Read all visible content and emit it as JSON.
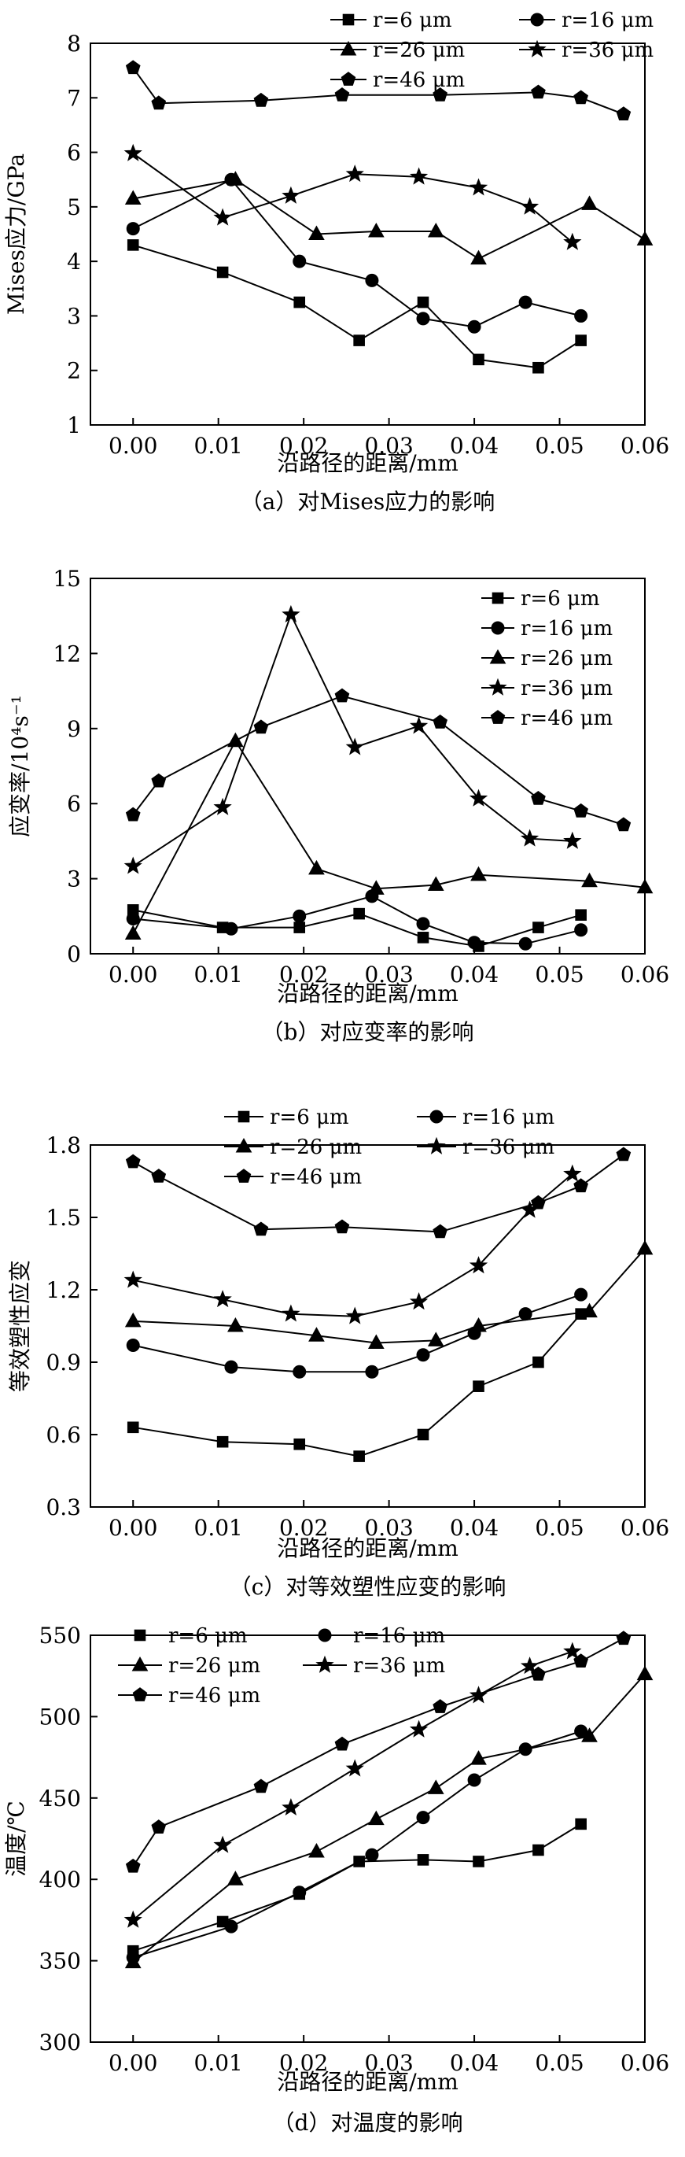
{
  "chart_data": [
    {
      "id": "a",
      "type": "line",
      "caption": "（a）对Mises应力的影响",
      "xlabel": "沿路径的距离/mm",
      "ylabel": "Mises应力/GPa",
      "xlim": [
        -0.005,
        0.06
      ],
      "ylim": [
        1,
        8
      ],
      "xticks": [
        0.0,
        0.01,
        0.02,
        0.03,
        0.04,
        0.05,
        0.06
      ],
      "yticks": [
        1,
        2,
        3,
        4,
        5,
        6,
        7,
        8
      ],
      "xtick_labels": [
        "0.00",
        "0.01",
        "0.02",
        "0.03",
        "0.04",
        "0.05",
        "0.06"
      ],
      "ytick_labels": [
        "1",
        "2",
        "3",
        "4",
        "5",
        "6",
        "7",
        "8"
      ],
      "series": [
        {
          "name": "r=6 μm",
          "marker": "square",
          "x": [
            0.0,
            0.0105,
            0.0195,
            0.0265,
            0.034,
            0.0405,
            0.0475,
            0.0525
          ],
          "y": [
            4.3,
            3.8,
            3.25,
            2.55,
            3.25,
            2.2,
            2.05,
            2.55
          ]
        },
        {
          "name": "r=16 μm",
          "marker": "circle",
          "x": [
            0.0,
            0.0115,
            0.0195,
            0.028,
            0.034,
            0.04,
            0.046,
            0.0525
          ],
          "y": [
            4.6,
            5.5,
            4.0,
            3.65,
            2.95,
            2.8,
            3.25,
            3.0
          ]
        },
        {
          "name": "r=26 μm",
          "marker": "triangle",
          "x": [
            0.0,
            0.012,
            0.0215,
            0.0285,
            0.0355,
            0.0405,
            0.0535,
            0.06
          ],
          "y": [
            5.15,
            5.5,
            4.5,
            4.55,
            4.55,
            4.05,
            5.05,
            4.4
          ]
        },
        {
          "name": "r=36 μm",
          "marker": "star",
          "x": [
            0.0,
            0.0105,
            0.0185,
            0.026,
            0.0335,
            0.0405,
            0.0465,
            0.0515
          ],
          "y": [
            5.98,
            4.8,
            5.2,
            5.6,
            5.55,
            5.35,
            5.0,
            4.35
          ]
        },
        {
          "name": "r=46 μm",
          "marker": "pentagon",
          "x": [
            0.0,
            0.003,
            0.015,
            0.0245,
            0.036,
            0.0475,
            0.0525,
            0.0575
          ],
          "y": [
            7.55,
            6.9,
            6.95,
            7.05,
            7.05,
            7.1,
            7.0,
            6.7
          ]
        }
      ]
    },
    {
      "id": "b",
      "type": "line",
      "caption": "（b）对应变率的影响",
      "xlabel": "沿路径的距离/mm",
      "ylabel": "应变率/10⁴s⁻¹",
      "xlim": [
        -0.005,
        0.06
      ],
      "ylim": [
        0,
        15
      ],
      "xticks": [
        0.0,
        0.01,
        0.02,
        0.03,
        0.04,
        0.05,
        0.06
      ],
      "yticks": [
        0,
        3,
        6,
        9,
        12,
        15
      ],
      "xtick_labels": [
        "0.00",
        "0.01",
        "0.02",
        "0.03",
        "0.04",
        "0.05",
        "0.06"
      ],
      "ytick_labels": [
        "0",
        "3",
        "6",
        "9",
        "12",
        "15"
      ],
      "series": [
        {
          "name": "r=6 μm",
          "marker": "square",
          "x": [
            0.0,
            0.0105,
            0.0195,
            0.0265,
            0.034,
            0.0405,
            0.0475,
            0.0525
          ],
          "y": [
            1.75,
            1.05,
            1.05,
            1.6,
            0.65,
            0.3,
            1.05,
            1.55
          ]
        },
        {
          "name": "r=16 μm",
          "marker": "circle",
          "x": [
            0.0,
            0.0115,
            0.0195,
            0.028,
            0.034,
            0.04,
            0.046,
            0.0525
          ],
          "y": [
            1.4,
            1.0,
            1.5,
            2.3,
            1.2,
            0.45,
            0.4,
            0.95
          ]
        },
        {
          "name": "r=26 μm",
          "marker": "triangle",
          "x": [
            0.0,
            0.012,
            0.0215,
            0.0285,
            0.0355,
            0.0405,
            0.0535,
            0.06
          ],
          "y": [
            0.8,
            8.5,
            3.4,
            2.6,
            2.75,
            3.15,
            2.9,
            2.65
          ]
        },
        {
          "name": "r=36 μm",
          "marker": "star",
          "x": [
            0.0,
            0.0105,
            0.0185,
            0.026,
            0.0335,
            0.0405,
            0.0465,
            0.0515
          ],
          "y": [
            3.5,
            5.85,
            13.55,
            8.25,
            9.1,
            6.2,
            4.6,
            4.5
          ]
        },
        {
          "name": "r=46 μm",
          "marker": "pentagon",
          "x": [
            0.0,
            0.003,
            0.015,
            0.0245,
            0.036,
            0.0475,
            0.0525,
            0.0575
          ],
          "y": [
            5.55,
            6.9,
            9.05,
            10.3,
            9.25,
            6.2,
            5.7,
            5.15
          ]
        }
      ]
    },
    {
      "id": "c",
      "type": "line",
      "caption": "（c）对等效塑性应变的影响",
      "xlabel": "沿路径的距离/mm",
      "ylabel": "等效塑性应变",
      "xlim": [
        -0.005,
        0.06
      ],
      "ylim": [
        0.3,
        1.8
      ],
      "xticks": [
        0.0,
        0.01,
        0.02,
        0.03,
        0.04,
        0.05,
        0.06
      ],
      "yticks": [
        0.3,
        0.6,
        0.9,
        1.2,
        1.5,
        1.8
      ],
      "xtick_labels": [
        "0.00",
        "0.01",
        "0.02",
        "0.03",
        "0.04",
        "0.05",
        "0.06"
      ],
      "ytick_labels": [
        "0.3",
        "0.6",
        "0.9",
        "1.2",
        "1.5",
        "1.8"
      ],
      "series": [
        {
          "name": "r=6 μm",
          "marker": "square",
          "x": [
            0.0,
            0.0105,
            0.0195,
            0.0265,
            0.034,
            0.0405,
            0.0475,
            0.0525
          ],
          "y": [
            0.63,
            0.57,
            0.56,
            0.51,
            0.6,
            0.8,
            0.9,
            1.1
          ]
        },
        {
          "name": "r=16 μm",
          "marker": "circle",
          "x": [
            0.0,
            0.0115,
            0.0195,
            0.028,
            0.034,
            0.04,
            0.046,
            0.0525
          ],
          "y": [
            0.97,
            0.88,
            0.86,
            0.86,
            0.93,
            1.02,
            1.1,
            1.18
          ]
        },
        {
          "name": "r=26 μm",
          "marker": "triangle",
          "x": [
            0.0,
            0.012,
            0.0215,
            0.0285,
            0.0355,
            0.0405,
            0.0535,
            0.06
          ],
          "y": [
            1.07,
            1.05,
            1.01,
            0.98,
            0.99,
            1.05,
            1.11,
            1.37
          ]
        },
        {
          "name": "r=36 μm",
          "marker": "star",
          "x": [
            0.0,
            0.0105,
            0.0185,
            0.026,
            0.0335,
            0.0405,
            0.0465,
            0.0515
          ],
          "y": [
            1.24,
            1.16,
            1.1,
            1.09,
            1.15,
            1.3,
            1.53,
            1.68
          ]
        },
        {
          "name": "r=46 μm",
          "marker": "pentagon",
          "x": [
            0.0,
            0.003,
            0.015,
            0.0245,
            0.036,
            0.0475,
            0.0525,
            0.0575
          ],
          "y": [
            1.73,
            1.67,
            1.45,
            1.46,
            1.44,
            1.56,
            1.63,
            1.76
          ]
        }
      ]
    },
    {
      "id": "d",
      "type": "line",
      "caption": "（d）对温度的影响",
      "xlabel": "沿路径的距离/mm",
      "ylabel": "温度/℃",
      "xlim": [
        -0.005,
        0.06
      ],
      "ylim": [
        300,
        550
      ],
      "xticks": [
        0.0,
        0.01,
        0.02,
        0.03,
        0.04,
        0.05,
        0.06
      ],
      "yticks": [
        300,
        350,
        400,
        450,
        500,
        550
      ],
      "xtick_labels": [
        "0.00",
        "0.01",
        "0.02",
        "0.03",
        "0.04",
        "0.05",
        "0.06"
      ],
      "ytick_labels": [
        "300",
        "350",
        "400",
        "450",
        "500",
        "550"
      ],
      "series": [
        {
          "name": "r=6 μm",
          "marker": "square",
          "x": [
            0.0,
            0.0105,
            0.0195,
            0.0265,
            0.034,
            0.0405,
            0.0475,
            0.0525
          ],
          "y": [
            356,
            374,
            391,
            411,
            412,
            411,
            418,
            434
          ]
        },
        {
          "name": "r=16 μm",
          "marker": "circle",
          "x": [
            0.0,
            0.0115,
            0.0195,
            0.028,
            0.034,
            0.04,
            0.046,
            0.0525
          ],
          "y": [
            352,
            371,
            392,
            415,
            438,
            461,
            480,
            491
          ]
        },
        {
          "name": "r=26 μm",
          "marker": "triangle",
          "x": [
            0.0,
            0.012,
            0.0215,
            0.0285,
            0.0355,
            0.0405,
            0.0535,
            0.06
          ],
          "y": [
            349,
            400,
            417,
            437,
            456,
            474,
            488,
            526
          ]
        },
        {
          "name": "r=36 μm",
          "marker": "star",
          "x": [
            0.0,
            0.0105,
            0.0185,
            0.026,
            0.0335,
            0.0405,
            0.0465,
            0.0515
          ],
          "y": [
            375,
            421,
            444,
            468,
            492,
            513,
            531,
            540
          ]
        },
        {
          "name": "r=46 μm",
          "marker": "pentagon",
          "x": [
            0.0,
            0.003,
            0.015,
            0.0245,
            0.036,
            0.0475,
            0.0525,
            0.0575
          ],
          "y": [
            408,
            432,
            457,
            483,
            506,
            526,
            534,
            548
          ]
        }
      ]
    }
  ]
}
